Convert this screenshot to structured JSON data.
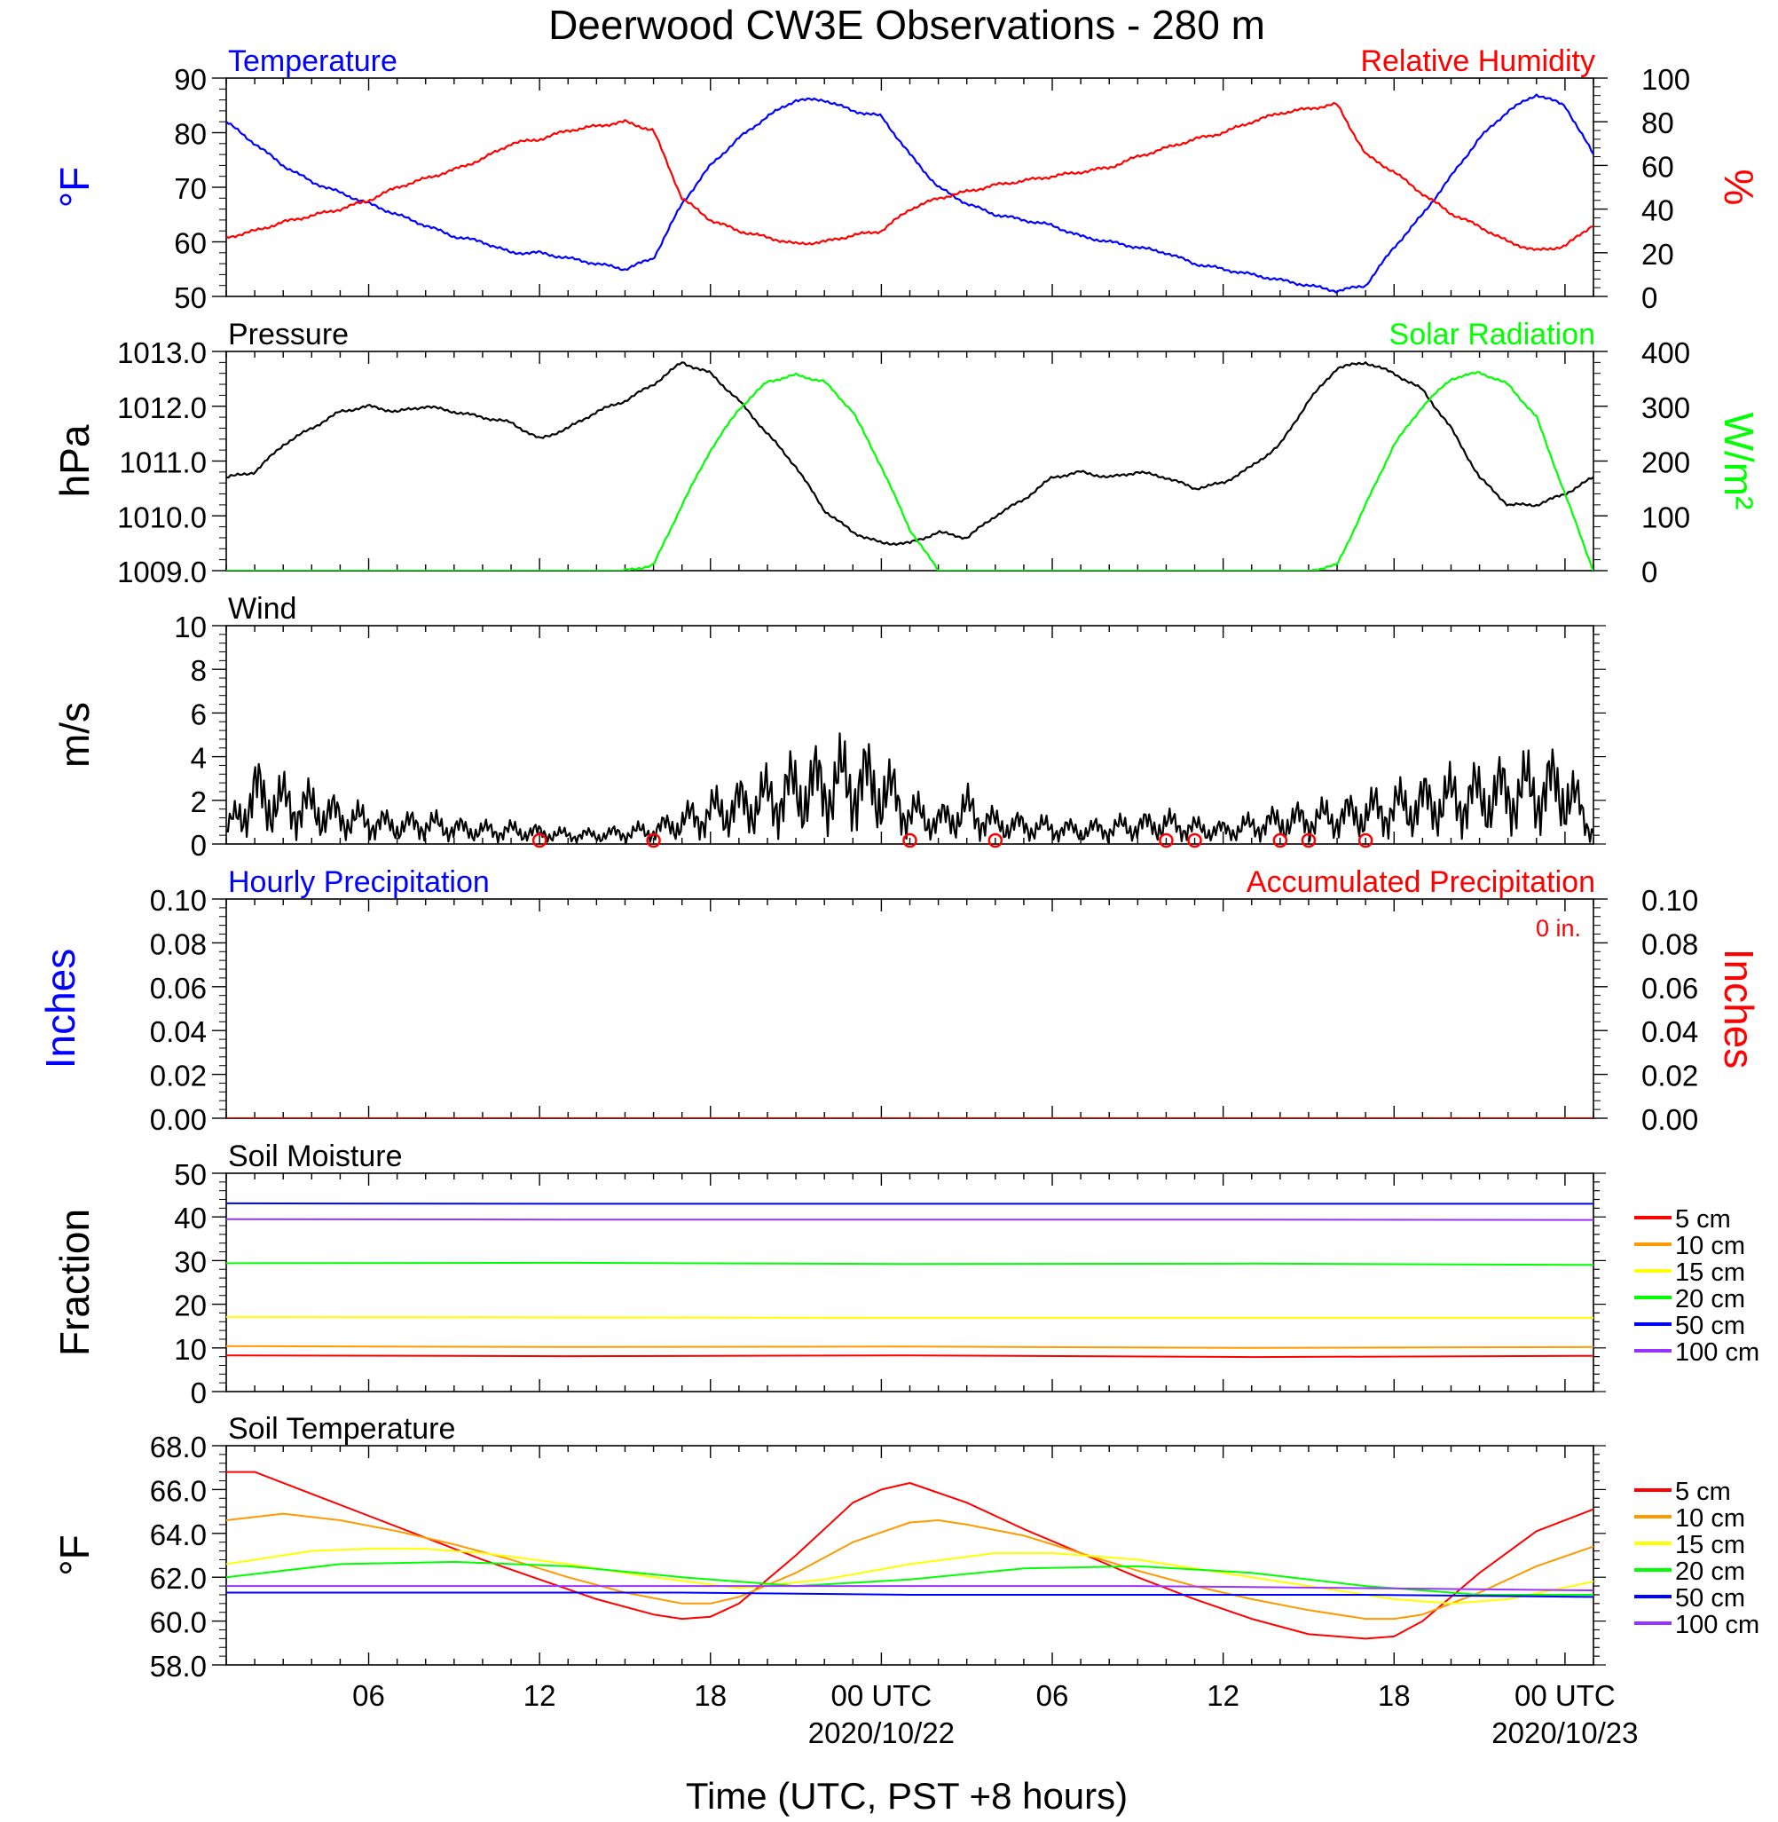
{
  "title": "Deerwood CW3E Observations - 280 m",
  "xlabel": "Time (UTC, PST +8 hours)",
  "colors": {
    "blue": "#0000ff",
    "red": "#ff0000",
    "green": "#00ff00",
    "black": "#000000",
    "orange": "#ff9900",
    "yellow": "#ffff00",
    "purple": "#9933ff"
  },
  "x_axis": {
    "range_hours": [
      0,
      48
    ],
    "ticks": [
      {
        "h": 5,
        "label": "06",
        "sub": ""
      },
      {
        "h": 11,
        "label": "12",
        "sub": ""
      },
      {
        "h": 17,
        "label": "18",
        "sub": ""
      },
      {
        "h": 23,
        "label": "00 UTC",
        "sub": "2020/10/22"
      },
      {
        "h": 29,
        "label": "06",
        "sub": ""
      },
      {
        "h": 35,
        "label": "12",
        "sub": ""
      },
      {
        "h": 41,
        "label": "18",
        "sub": ""
      },
      {
        "h": 47,
        "label": "00 UTC",
        "sub": "2020/10/23"
      }
    ]
  },
  "chart_data": [
    {
      "type": "line",
      "title_left": "Temperature",
      "title_right": "Relative Humidity",
      "ylabel_left": "°F",
      "ylabel_right": "%",
      "ylim_left": [
        50,
        90
      ],
      "yticks_left": [
        "50",
        "60",
        "70",
        "80",
        "90"
      ],
      "ylim_right": [
        0,
        100
      ],
      "yticks_right": [
        "0",
        "20",
        "40",
        "60",
        "80",
        "100"
      ],
      "series": [
        {
          "axis": "left",
          "color": "#0000ff",
          "x": [
            0,
            1,
            2,
            3,
            4,
            5,
            6,
            7,
            8,
            9,
            10,
            11,
            12,
            13,
            14,
            15,
            16,
            17,
            18,
            19,
            20,
            21,
            22,
            23,
            24,
            25,
            26,
            27,
            28,
            29,
            30,
            31,
            32,
            33,
            34,
            35,
            36,
            37,
            38,
            39,
            40,
            41,
            42,
            43,
            44,
            45,
            46,
            47,
            48
          ],
          "y": [
            82,
            78,
            74,
            71,
            69,
            67,
            65,
            63,
            61,
            60,
            58,
            58,
            57,
            56,
            55,
            57,
            67,
            74,
            79,
            83,
            86,
            86,
            84,
            83,
            76,
            70,
            67,
            65,
            64,
            63,
            61,
            60,
            59,
            58,
            56,
            55,
            54,
            53,
            52,
            51,
            52,
            59,
            65,
            72,
            79,
            84,
            87,
            85,
            76
          ]
        },
        {
          "axis": "right",
          "color": "#ff0000",
          "x": [
            0,
            1,
            2,
            3,
            4,
            5,
            6,
            7,
            8,
            9,
            10,
            11,
            12,
            13,
            14,
            15,
            16,
            17,
            18,
            19,
            20,
            21,
            22,
            23,
            24,
            25,
            26,
            27,
            28,
            29,
            30,
            31,
            32,
            33,
            34,
            35,
            36,
            37,
            38,
            39,
            40,
            41,
            42,
            43,
            44,
            45,
            46,
            47,
            48
          ],
          "y": [
            27,
            30,
            34,
            37,
            40,
            44,
            50,
            54,
            58,
            63,
            70,
            72,
            76,
            78,
            80,
            76,
            45,
            35,
            30,
            27,
            24,
            25,
            28,
            30,
            40,
            45,
            48,
            51,
            53,
            55,
            57,
            59,
            64,
            68,
            72,
            75,
            80,
            84,
            86,
            88,
            65,
            57,
            47,
            38,
            32,
            25,
            21,
            23,
            33
          ]
        }
      ]
    },
    {
      "type": "line",
      "title_left": "Pressure",
      "title_right": "Solar Radiation",
      "ylabel_left": "hPa",
      "ylabel_right": "W/m²",
      "ylim_left": [
        1009,
        1013
      ],
      "yticks_left": [
        "1009.0",
        "1010.0",
        "1011.0",
        "1012.0",
        "1013.0"
      ],
      "ylim_right": [
        0,
        400
      ],
      "yticks_right": [
        "0",
        "100",
        "200",
        "300",
        "400"
      ],
      "series": [
        {
          "axis": "left",
          "color": "#000000",
          "x": [
            0,
            1,
            2,
            3,
            4,
            5,
            6,
            7,
            8,
            9,
            10,
            11,
            12,
            13,
            14,
            15,
            16,
            17,
            18,
            19,
            20,
            21,
            22,
            23,
            24,
            25,
            26,
            27,
            28,
            29,
            30,
            31,
            32,
            33,
            34,
            35,
            36,
            37,
            38,
            39,
            40,
            41,
            42,
            43,
            44,
            45,
            46,
            47,
            48
          ],
          "y": [
            1010.7,
            1010.8,
            1011.3,
            1011.6,
            1011.9,
            1012.0,
            1011.9,
            1012.0,
            1011.9,
            1011.8,
            1011.7,
            1011.4,
            1011.6,
            1011.9,
            1012.1,
            1012.4,
            1012.8,
            1012.6,
            1012.1,
            1011.5,
            1010.9,
            1010.1,
            1009.7,
            1009.5,
            1009.5,
            1009.7,
            1009.6,
            1010.0,
            1010.3,
            1010.7,
            1010.8,
            1010.7,
            1010.8,
            1010.7,
            1010.5,
            1010.6,
            1010.9,
            1011.3,
            1012.1,
            1012.7,
            1012.8,
            1012.6,
            1012.3,
            1011.6,
            1010.7,
            1010.2,
            1010.2,
            1010.4,
            1010.7
          ]
        },
        {
          "axis": "right",
          "color": "#00ff00",
          "x": [
            0,
            14,
            15,
            16,
            17,
            18,
            19,
            20,
            21,
            22,
            23,
            24,
            25,
            26,
            38,
            39,
            40,
            41,
            42,
            43,
            44,
            45,
            46,
            47,
            48
          ],
          "y": [
            0,
            0,
            10,
            120,
            220,
            295,
            345,
            357,
            345,
            290,
            190,
            75,
            0,
            0,
            0,
            10,
            120,
            230,
            300,
            350,
            362,
            340,
            280,
            140,
            0
          ]
        }
      ]
    },
    {
      "type": "line",
      "title_left": "Wind",
      "ylabel_left": "m/s",
      "ylim_left": [
        0,
        10
      ],
      "yticks_left": [
        "0",
        "2",
        "4",
        "6",
        "8",
        "10"
      ],
      "series": [
        {
          "axis": "left",
          "color": "#000000",
          "x": [
            0,
            1,
            2,
            3,
            4,
            5,
            6,
            7,
            8,
            9,
            10,
            11,
            12,
            13,
            14,
            15,
            16,
            17,
            18,
            19,
            20,
            21,
            22,
            23,
            24,
            25,
            26,
            27,
            28,
            29,
            30,
            31,
            32,
            33,
            34,
            35,
            36,
            37,
            38,
            39,
            40,
            41,
            42,
            43,
            44,
            45,
            46,
            47,
            48
          ],
          "y": [
            0.6,
            2.2,
            1.8,
            1.6,
            1.2,
            1.0,
            0.8,
            0.9,
            0.7,
            0.6,
            0.6,
            0.5,
            0.4,
            0.4,
            0.5,
            0.6,
            1.0,
            1.4,
            1.7,
            2.0,
            2.4,
            2.6,
            2.8,
            2.5,
            1.4,
            1.0,
            1.5,
            0.9,
            0.8,
            0.7,
            0.6,
            0.7,
            0.8,
            0.9,
            0.7,
            0.6,
            0.8,
            1.0,
            1.1,
            1.2,
            1.4,
            1.6,
            1.8,
            2.0,
            2.1,
            2.3,
            2.4,
            2.5,
            0.6
          ]
        }
      ],
      "calm_circles_hours": [
        11,
        15,
        24,
        27,
        33,
        34,
        37,
        38,
        40
      ]
    },
    {
      "type": "line",
      "title_left": "Hourly Precipitation",
      "title_right": "Accumulated Precipitation",
      "annotation": "0 in.",
      "ylabel_left": "Inches",
      "ylabel_right": "Inches",
      "ylim_left": [
        0,
        0.1
      ],
      "yticks_left": [
        "0.00",
        "0.02",
        "0.04",
        "0.06",
        "0.08",
        "0.10"
      ],
      "ylim_right": [
        0,
        0.1
      ],
      "yticks_right": [
        "0.00",
        "0.02",
        "0.04",
        "0.06",
        "0.08",
        "0.10"
      ],
      "series": [
        {
          "axis": "left",
          "color": "#0000ff",
          "x": [
            0,
            48
          ],
          "y": [
            0,
            0
          ]
        },
        {
          "axis": "right",
          "color": "#ff0000",
          "x": [
            0,
            48
          ],
          "y": [
            0,
            0
          ]
        }
      ]
    },
    {
      "type": "line",
      "title_left": "Soil Moisture",
      "ylabel_left": "Fraction",
      "ylim_left": [
        0,
        50
      ],
      "yticks_left": [
        "0",
        "10",
        "20",
        "30",
        "40",
        "50"
      ],
      "series": [
        {
          "name": "5 cm",
          "axis": "left",
          "color": "#ff0000",
          "x": [
            0,
            12,
            24,
            36,
            48
          ],
          "y": [
            8.3,
            8.1,
            8.3,
            7.9,
            8.2
          ]
        },
        {
          "name": "10 cm",
          "axis": "left",
          "color": "#ff9900",
          "x": [
            0,
            12,
            24,
            36,
            48
          ],
          "y": [
            10.4,
            10.2,
            10.3,
            10.0,
            10.2
          ]
        },
        {
          "name": "15 cm",
          "axis": "left",
          "color": "#ffff00",
          "x": [
            0,
            12,
            24,
            36,
            48
          ],
          "y": [
            17.1,
            17.0,
            16.9,
            16.9,
            16.9
          ]
        },
        {
          "name": "20 cm",
          "axis": "left",
          "color": "#00ff00",
          "x": [
            0,
            12,
            24,
            36,
            48
          ],
          "y": [
            29.4,
            29.5,
            29.2,
            29.3,
            29.0
          ]
        },
        {
          "name": "50 cm",
          "axis": "left",
          "color": "#0000ff",
          "x": [
            0,
            12,
            24,
            36,
            48
          ],
          "y": [
            43.1,
            43.0,
            43.0,
            43.0,
            43.0
          ]
        },
        {
          "name": "100 cm",
          "axis": "left",
          "color": "#9933ff",
          "x": [
            0,
            12,
            24,
            36,
            48
          ],
          "y": [
            39.5,
            39.4,
            39.4,
            39.4,
            39.3
          ]
        }
      ]
    },
    {
      "type": "line",
      "title_left": "Soil Temperature",
      "ylabel_left": "°F",
      "ylim_left": [
        58,
        68
      ],
      "yticks_left": [
        "58.0",
        "60.0",
        "62.0",
        "64.0",
        "66.0",
        "68.0"
      ],
      "series": [
        {
          "name": "5 cm",
          "axis": "left",
          "color": "#ff0000",
          "x": [
            0,
            1,
            3,
            5,
            7,
            9,
            11,
            13,
            15,
            16,
            17,
            18,
            20,
            22,
            23,
            24,
            26,
            28,
            30,
            32,
            34,
            36,
            38,
            40,
            41,
            42,
            44,
            46,
            48
          ],
          "y": [
            66.8,
            66.8,
            65.8,
            64.8,
            63.8,
            62.8,
            61.9,
            61.0,
            60.3,
            60.1,
            60.2,
            60.8,
            63.0,
            65.4,
            66.0,
            66.3,
            65.4,
            64.2,
            63.1,
            62.0,
            61.0,
            60.1,
            59.4,
            59.2,
            59.3,
            60.0,
            62.2,
            64.1,
            65.1
          ]
        },
        {
          "name": "10 cm",
          "axis": "left",
          "color": "#ff9900",
          "x": [
            0,
            2,
            4,
            6,
            8,
            10,
            12,
            14,
            16,
            17,
            18,
            20,
            22,
            24,
            25,
            26,
            28,
            30,
            32,
            34,
            36,
            38,
            40,
            41,
            42,
            44,
            46,
            48
          ],
          "y": [
            64.6,
            64.9,
            64.6,
            64.1,
            63.5,
            62.8,
            62.0,
            61.3,
            60.8,
            60.8,
            61.1,
            62.2,
            63.6,
            64.5,
            64.6,
            64.4,
            63.9,
            63.1,
            62.3,
            61.6,
            61.0,
            60.5,
            60.1,
            60.1,
            60.3,
            61.3,
            62.5,
            63.4
          ]
        },
        {
          "name": "15 cm",
          "axis": "left",
          "color": "#ffff00",
          "x": [
            0,
            3,
            5,
            7,
            9,
            12,
            15,
            18,
            21,
            24,
            27,
            29,
            32,
            35,
            38,
            41,
            43,
            45,
            48
          ],
          "y": [
            62.6,
            63.2,
            63.3,
            63.3,
            63.1,
            62.6,
            62.0,
            61.5,
            61.9,
            62.6,
            63.1,
            63.1,
            62.8,
            62.2,
            61.6,
            61.0,
            60.8,
            61.0,
            61.8
          ]
        },
        {
          "name": "20 cm",
          "axis": "left",
          "color": "#00ff00",
          "x": [
            0,
            4,
            8,
            12,
            16,
            20,
            24,
            28,
            32,
            36,
            40,
            44,
            48
          ],
          "y": [
            62.0,
            62.6,
            62.7,
            62.5,
            62.0,
            61.6,
            61.9,
            62.4,
            62.5,
            62.2,
            61.6,
            61.2,
            61.2
          ]
        },
        {
          "name": "50 cm",
          "axis": "left",
          "color": "#0000ff",
          "x": [
            0,
            8,
            16,
            24,
            32,
            40,
            48
          ],
          "y": [
            61.3,
            61.3,
            61.3,
            61.2,
            61.2,
            61.2,
            61.1
          ]
        },
        {
          "name": "100 cm",
          "axis": "left",
          "color": "#9933ff",
          "x": [
            0,
            8,
            16,
            24,
            32,
            40,
            48
          ],
          "y": [
            61.6,
            61.6,
            61.6,
            61.6,
            61.6,
            61.5,
            61.4
          ]
        }
      ]
    }
  ]
}
